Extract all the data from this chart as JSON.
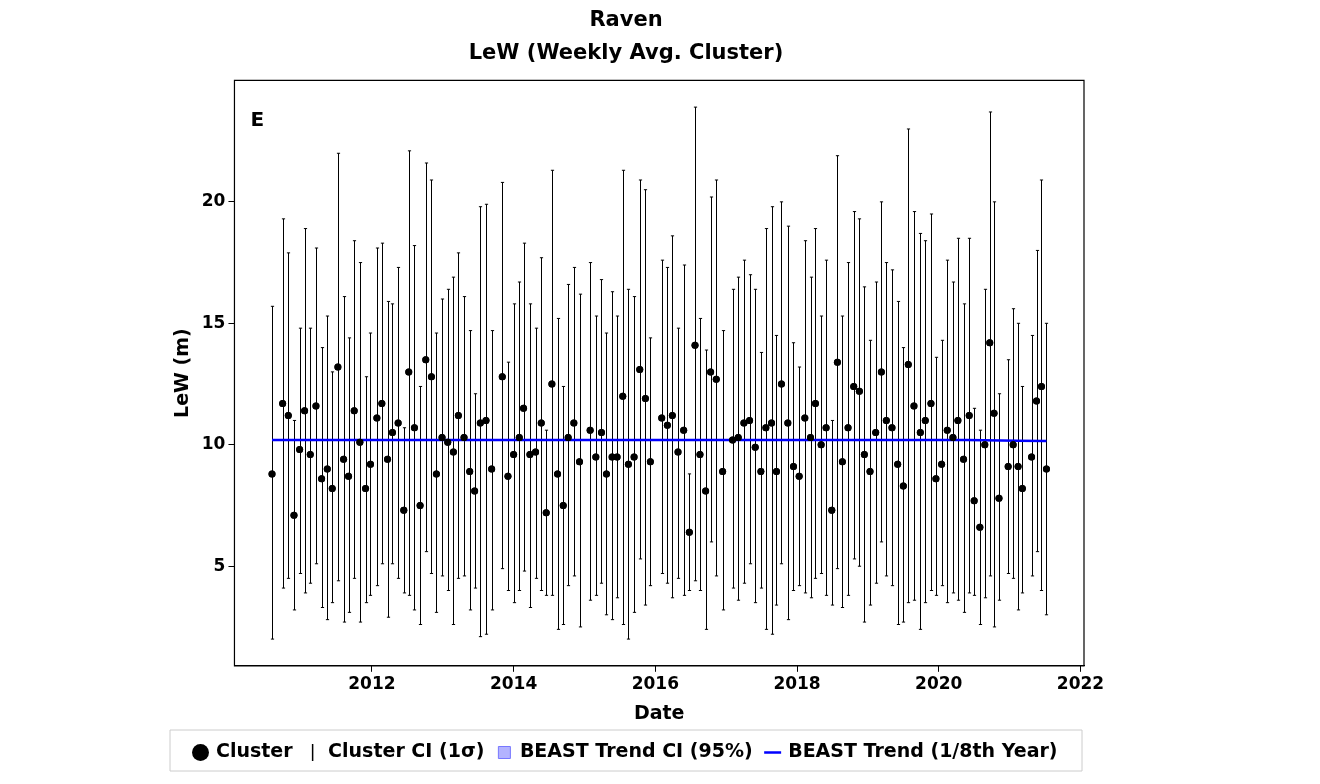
{
  "chart_data": {
    "type": "scatter",
    "title": "Raven",
    "subtitle": "LeW (Weekly Avg. Cluster)",
    "xlabel": "Date",
    "ylabel": "LeW (m)",
    "annotations": [
      "E"
    ],
    "x": [
      2010.59,
      2010.74,
      2010.82,
      2010.9,
      2010.98,
      2011.05,
      2011.13,
      2011.21,
      2011.29,
      2011.37,
      2011.44,
      2011.52,
      2011.6,
      2011.67,
      2011.75,
      2011.83,
      2011.91,
      2011.98,
      2012.07,
      2012.14,
      2012.22,
      2012.29,
      2012.37,
      2012.45,
      2012.52,
      2012.6,
      2012.68,
      2012.76,
      2012.84,
      2012.91,
      2012.99,
      2013.07,
      2013.15,
      2013.22,
      2013.3,
      2013.38,
      2013.45,
      2013.53,
      2013.61,
      2013.69,
      2013.84,
      2013.92,
      2014.0,
      2014.08,
      2014.14,
      2014.23,
      2014.31,
      2014.39,
      2014.46,
      2014.54,
      2014.62,
      2014.7,
      2014.77,
      2014.85,
      2014.93,
      2015.08,
      2015.16,
      2015.24,
      2015.31,
      2015.39,
      2015.46,
      2015.54,
      2015.62,
      2015.7,
      2015.78,
      2015.86,
      2015.93,
      2016.09,
      2016.17,
      2016.24,
      2016.32,
      2016.4,
      2016.48,
      2016.56,
      2016.63,
      2016.71,
      2016.78,
      2016.86,
      2016.95,
      2017.09,
      2017.17,
      2017.25,
      2017.33,
      2017.41,
      2017.49,
      2017.56,
      2017.64,
      2017.71,
      2017.78,
      2017.87,
      2017.95,
      2018.03,
      2018.11,
      2018.19,
      2018.26,
      2018.34,
      2018.41,
      2018.49,
      2018.57,
      2018.64,
      2018.72,
      2018.8,
      2018.88,
      2018.95,
      2019.03,
      2019.11,
      2019.19,
      2019.26,
      2019.34,
      2019.42,
      2019.5,
      2019.57,
      2019.65,
      2019.74,
      2019.81,
      2019.89,
      2019.96,
      2020.04,
      2020.12,
      2020.2,
      2020.27,
      2020.35,
      2020.43,
      2020.5,
      2020.58,
      2020.65,
      2020.72,
      2020.78,
      2020.85,
      2020.98,
      2021.05,
      2021.12,
      2021.18,
      2021.31,
      2021.38,
      2021.45,
      2021.52
    ],
    "series": [
      {
        "name": "Cluster",
        "type": "scatter",
        "color": "#000000",
        "marker": "circle",
        "values": [
          8.8,
          11.7,
          11.2,
          7.1,
          9.8,
          11.4,
          9.6,
          11.6,
          8.6,
          9.0,
          8.2,
          13.2,
          9.4,
          8.7,
          11.4,
          10.1,
          8.2,
          9.2,
          11.1,
          11.7,
          9.4,
          10.5,
          10.9,
          7.3,
          13.0,
          10.7,
          7.5,
          13.5,
          12.8,
          8.8,
          10.3,
          10.1,
          9.7,
          11.2,
          10.3,
          8.9,
          8.1,
          10.9,
          11.0,
          9.0,
          12.8,
          8.7,
          9.6,
          10.3,
          11.5,
          9.6,
          9.7,
          10.9,
          7.2,
          12.5,
          8.8,
          7.5,
          10.3,
          10.9,
          9.3,
          10.6,
          9.5,
          10.5,
          8.8,
          9.5,
          9.5,
          12.0,
          9.2,
          9.5,
          13.1,
          11.9,
          9.3,
          11.1,
          10.8,
          11.2,
          9.7,
          10.6,
          6.4,
          14.1,
          9.6,
          8.1,
          13.0,
          12.7,
          8.9,
          10.2,
          10.3,
          10.9,
          11.0,
          9.9,
          8.9,
          10.7,
          10.9,
          8.9,
          12.5,
          10.9,
          9.1,
          8.7,
          11.1,
          10.3,
          11.7,
          10.0,
          10.7,
          7.3,
          13.4,
          9.3,
          10.7,
          12.4,
          12.2,
          9.6,
          8.9,
          10.5,
          13.0,
          11.0,
          10.7,
          9.2,
          8.3,
          13.3,
          11.6,
          10.5,
          11.0,
          11.7,
          8.6,
          9.2,
          10.6,
          10.3,
          11.0,
          9.4,
          11.2,
          7.7,
          6.6,
          10.0,
          14.2,
          11.3,
          7.8,
          9.1,
          10.0,
          9.1,
          8.2,
          9.5,
          11.8,
          12.4,
          9.0
        ]
      },
      {
        "name": "Cluster CI (1σ)",
        "type": "scatter",
        "color": "#000000",
        "marker": "circle",
        "values": [
          8.8,
          11.7,
          11.2,
          7.1,
          9.8,
          11.4,
          9.6,
          11.6,
          8.6,
          9.0,
          8.2,
          13.2,
          9.4,
          8.7,
          11.4,
          10.1,
          8.2,
          9.2,
          11.1,
          11.7,
          9.4,
          10.5,
          10.9,
          7.3,
          13.0,
          10.7,
          7.5,
          13.5,
          12.8,
          8.8,
          10.3,
          10.1,
          9.7,
          11.2,
          10.3,
          8.9,
          8.1,
          10.9,
          11.0,
          9.0,
          12.8,
          8.7,
          9.6,
          10.3,
          11.5,
          9.6,
          9.7,
          10.9,
          7.2,
          12.5,
          8.8,
          7.5,
          10.3,
          10.9,
          9.3,
          10.6,
          9.5,
          10.5,
          8.8,
          9.5,
          9.5,
          12.0,
          9.2,
          9.5,
          13.1,
          11.9,
          9.3,
          11.1,
          10.8,
          11.2,
          9.7,
          10.6,
          6.4,
          14.1,
          9.6,
          8.1,
          13.0,
          12.7,
          8.9,
          10.2,
          10.3,
          10.9,
          11.0,
          9.9,
          8.9,
          10.7,
          10.9,
          8.9,
          12.5,
          10.9,
          9.1,
          8.7,
          11.1,
          10.3,
          11.7,
          10.0,
          10.7,
          7.3,
          13.4,
          9.3,
          10.7,
          12.4,
          12.2,
          9.6,
          8.9,
          10.5,
          13.0,
          11.0,
          10.7,
          9.2,
          8.3,
          13.3,
          11.6,
          10.5,
          11.0,
          11.7,
          8.6,
          9.2,
          10.6,
          10.3,
          11.0,
          9.4,
          11.2,
          7.7,
          6.6,
          10.0,
          14.2,
          11.3,
          7.8,
          9.1,
          10.0,
          9.1,
          8.2,
          9.5,
          11.8,
          12.4,
          9.0
        ],
        "errors": [
          [
            2.0,
            15.7
          ],
          [
            4.1,
            19.3
          ],
          [
            4.5,
            17.9
          ],
          [
            3.2,
            11.0
          ],
          [
            4.7,
            14.8
          ],
          [
            3.9,
            18.9
          ],
          [
            4.3,
            14.8
          ],
          [
            5.1,
            18.1
          ],
          [
            3.3,
            14.0
          ],
          [
            2.8,
            15.3
          ],
          [
            3.5,
            13.0
          ],
          [
            4.4,
            22.0
          ],
          [
            2.7,
            16.1
          ],
          [
            3.1,
            14.4
          ],
          [
            4.5,
            18.4
          ],
          [
            2.7,
            17.5
          ],
          [
            3.5,
            12.8
          ],
          [
            3.8,
            14.6
          ],
          [
            4.2,
            18.1
          ],
          [
            5.1,
            18.3
          ],
          [
            2.9,
            15.9
          ],
          [
            5.1,
            15.8
          ],
          [
            4.5,
            17.3
          ],
          [
            3.9,
            10.7
          ],
          [
            3.8,
            22.1
          ],
          [
            3.2,
            18.2
          ],
          [
            2.6,
            12.4
          ],
          [
            5.6,
            21.6
          ],
          [
            4.7,
            20.9
          ],
          [
            3.1,
            14.6
          ],
          [
            4.6,
            16.0
          ],
          [
            4.0,
            16.4
          ],
          [
            2.6,
            16.9
          ],
          [
            4.5,
            17.9
          ],
          [
            4.6,
            16.1
          ],
          [
            3.2,
            14.7
          ],
          [
            4.1,
            12.1
          ],
          [
            2.1,
            19.8
          ],
          [
            2.2,
            19.9
          ],
          [
            3.2,
            14.7
          ],
          [
            4.9,
            20.8
          ],
          [
            4.0,
            13.4
          ],
          [
            3.5,
            15.8
          ],
          [
            4.0,
            16.7
          ],
          [
            4.8,
            18.3
          ],
          [
            3.3,
            15.8
          ],
          [
            4.5,
            14.8
          ],
          [
            4.0,
            17.7
          ],
          [
            3.8,
            10.6
          ],
          [
            3.8,
            21.3
          ],
          [
            2.4,
            15.2
          ],
          [
            2.6,
            12.4
          ],
          [
            4.2,
            16.6
          ],
          [
            4.6,
            17.3
          ],
          [
            2.5,
            16.2
          ],
          [
            3.6,
            17.5
          ],
          [
            3.8,
            15.3
          ],
          [
            4.3,
            16.8
          ],
          [
            3.0,
            14.6
          ],
          [
            2.8,
            16.3
          ],
          [
            3.7,
            15.3
          ],
          [
            2.6,
            21.3
          ],
          [
            2.0,
            16.4
          ],
          [
            3.1,
            16.1
          ],
          [
            5.3,
            20.9
          ],
          [
            3.4,
            20.5
          ],
          [
            4.2,
            14.4
          ],
          [
            4.7,
            17.6
          ],
          [
            4.3,
            17.3
          ],
          [
            3.7,
            18.6
          ],
          [
            4.5,
            14.8
          ],
          [
            3.8,
            17.4
          ],
          [
            4.0,
            8.8
          ],
          [
            4.4,
            23.9
          ],
          [
            4.0,
            15.2
          ],
          [
            2.4,
            13.9
          ],
          [
            6.0,
            20.2
          ],
          [
            4.6,
            20.9
          ],
          [
            3.2,
            14.7
          ],
          [
            4.1,
            16.4
          ],
          [
            3.6,
            16.9
          ],
          [
            4.3,
            17.6
          ],
          [
            5.1,
            17.0
          ],
          [
            3.5,
            16.4
          ],
          [
            4.1,
            13.8
          ],
          [
            2.4,
            18.9
          ],
          [
            2.2,
            19.8
          ],
          [
            3.4,
            14.5
          ],
          [
            5.1,
            20.0
          ],
          [
            2.8,
            19.0
          ],
          [
            4.0,
            14.2
          ],
          [
            4.2,
            13.2
          ],
          [
            3.9,
            18.4
          ],
          [
            3.7,
            16.9
          ],
          [
            4.5,
            18.9
          ],
          [
            4.7,
            15.3
          ],
          [
            3.8,
            17.6
          ],
          [
            3.4,
            11.0
          ],
          [
            4.9,
            21.9
          ],
          [
            3.3,
            15.3
          ],
          [
            3.8,
            17.5
          ],
          [
            5.3,
            19.6
          ],
          [
            5.0,
            19.3
          ],
          [
            2.7,
            16.5
          ],
          [
            3.4,
            14.3
          ],
          [
            4.3,
            16.7
          ],
          [
            6.0,
            20.0
          ],
          [
            4.6,
            17.5
          ],
          [
            4.2,
            17.2
          ],
          [
            2.6,
            15.9
          ],
          [
            2.7,
            14.0
          ],
          [
            3.5,
            23.0
          ],
          [
            3.6,
            19.6
          ],
          [
            2.4,
            18.7
          ],
          [
            3.5,
            18.4
          ],
          [
            4.0,
            19.5
          ],
          [
            3.8,
            13.6
          ],
          [
            4.2,
            14.3
          ],
          [
            3.5,
            17.6
          ],
          [
            3.9,
            16.7
          ],
          [
            3.6,
            18.5
          ],
          [
            3.1,
            15.8
          ],
          [
            3.9,
            18.5
          ],
          [
            3.8,
            11.5
          ],
          [
            2.6,
            10.6
          ],
          [
            3.7,
            16.4
          ],
          [
            4.6,
            23.7
          ],
          [
            2.5,
            20.0
          ],
          [
            3.6,
            12.1
          ],
          [
            4.7,
            13.5
          ],
          [
            4.5,
            15.6
          ],
          [
            3.2,
            15.0
          ],
          [
            3.9,
            12.4
          ],
          [
            4.6,
            14.5
          ],
          [
            5.6,
            18.0
          ],
          [
            4.0,
            20.9
          ],
          [
            3.0,
            15.0
          ]
        ]
      },
      {
        "name": "BEAST Trend CI (95%)",
        "type": "area",
        "color": "#b3b3ff",
        "values": [
          null,
          null,
          null,
          null,
          null,
          null,
          null,
          null,
          null,
          null,
          null,
          null,
          null,
          null,
          null,
          null,
          null,
          null,
          null,
          null,
          null,
          null,
          null,
          null,
          null,
          null,
          null,
          null,
          null,
          null,
          null,
          null,
          null,
          null,
          null,
          null,
          null,
          null,
          null,
          null,
          null,
          null,
          null,
          null,
          null,
          null,
          null,
          null,
          null,
          null,
          null,
          null,
          null,
          null,
          null,
          null,
          null,
          null,
          null,
          null,
          null,
          null,
          null,
          null,
          null,
          null,
          null,
          null,
          null,
          null,
          null,
          null,
          null,
          null,
          null,
          null,
          null,
          null,
          null,
          null,
          null,
          null,
          null,
          null,
          null,
          null,
          null,
          null,
          null,
          null,
          null,
          null,
          null,
          null,
          null,
          null,
          null,
          null,
          null,
          null,
          null,
          null,
          null,
          null,
          null,
          null,
          null,
          null,
          null,
          null,
          null,
          null,
          null,
          null,
          null,
          null,
          null,
          null,
          null,
          null,
          null,
          null,
          null,
          null,
          null,
          null,
          null,
          null,
          null,
          null,
          null,
          null,
          null,
          null,
          null,
          null,
          null
        ]
      },
      {
        "name": "BEAST Trend (1/8th Year)",
        "type": "line",
        "color": "#0000ff",
        "x": [
          2010.59,
          2020.4,
          2021.52
        ],
        "values": [
          10.2,
          10.2,
          10.15
        ],
        "marker": "none"
      }
    ],
    "xlim": [
      2010.06,
      2022.05
    ],
    "xticks": [
      2012,
      2014,
      2016,
      2018,
      2020,
      2022
    ],
    "ylim": [
      0.9,
      25
    ],
    "yticks": [
      5,
      10,
      15,
      20
    ],
    "legend": "bottom"
  }
}
